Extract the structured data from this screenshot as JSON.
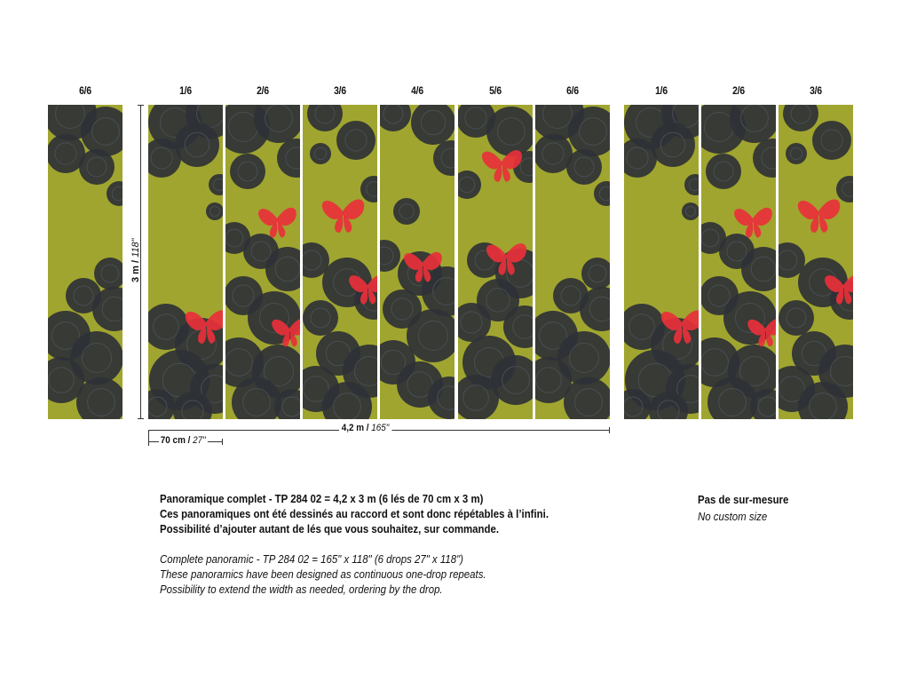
{
  "panel_labels": [
    "6/6",
    "1/6",
    "2/6",
    "3/6",
    "4/6",
    "5/6",
    "6/6",
    "1/6",
    "2/6",
    "3/6"
  ],
  "colors": {
    "background_olive": "#a0a52f",
    "dark_circles": "#2e3136",
    "butterfly_red": "#e8303a"
  },
  "dimensions": {
    "height": {
      "metric": "3 m /",
      "imperial": "118\""
    },
    "panel_width": {
      "metric": "70 cm /",
      "imperial": "27\""
    },
    "total_width": {
      "metric": "4,2 m /",
      "imperial": "165\""
    }
  },
  "description": {
    "fr": [
      "Panoramique complet - TP 284 02 = 4,2 x 3 m (6 lés de 70 cm x 3 m)",
      "Ces panoramiques ont été dessinés au raccord et sont donc répétables à l’infini.",
      "Possibilité d’ajouter autant de lés que vous souhaitez, sur commande."
    ],
    "en": [
      "Complete panoramic - TP 284 02 = 165\" x 118\" (6 drops 27\" x 118\")",
      "These panoramics have been designed as continuous one-drop repeats.",
      "Possibility to extend the width as needed, ordering by the drop."
    ]
  },
  "custom_size": {
    "fr": "Pas de sur-mesure",
    "en": "No custom size"
  }
}
